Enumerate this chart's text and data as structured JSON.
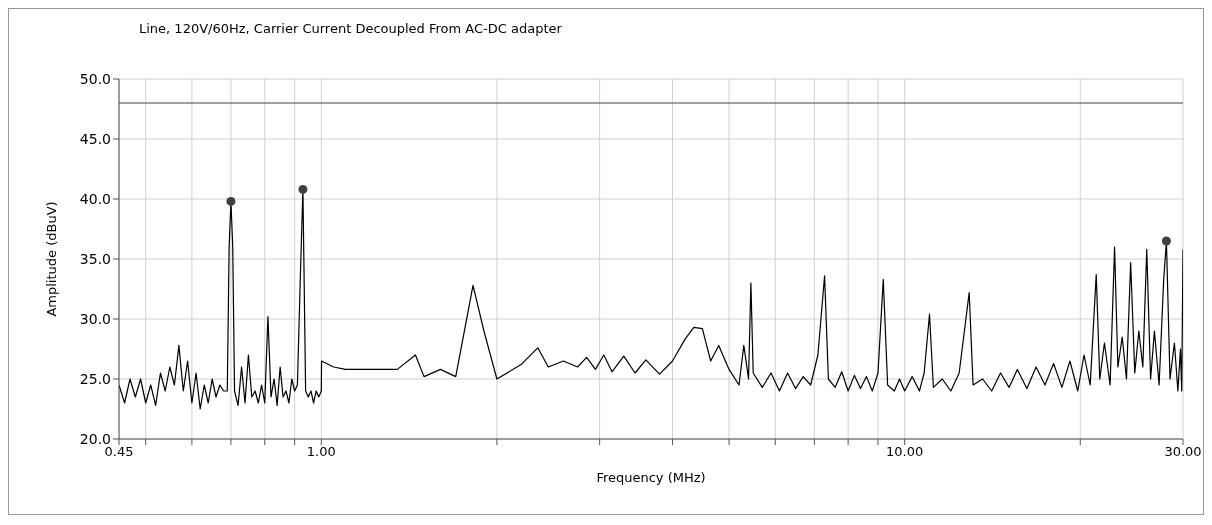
{
  "chart_data": {
    "type": "line",
    "title": "Line, 120V/60Hz, Carrier Current Decoupled From AC-DC adapter",
    "xlabel": "Frequency (MHz)",
    "ylabel": "Amplitude (dBuV)",
    "log": "x",
    "grid": true,
    "marker": "none",
    "line_style": "solid",
    "xlim": [
      0.45,
      30
    ],
    "ylim": [
      20,
      50
    ],
    "xticks": [
      {
        "value": 0.45,
        "label": "0.45"
      },
      {
        "value": 0.5,
        "label": null
      },
      {
        "value": 0.6,
        "label": null
      },
      {
        "value": 0.7,
        "label": null
      },
      {
        "value": 0.8,
        "label": null
      },
      {
        "value": 0.9,
        "label": null
      },
      {
        "value": 1,
        "label": "1.00"
      },
      {
        "value": 2,
        "label": null
      },
      {
        "value": 3,
        "label": null
      },
      {
        "value": 4,
        "label": null
      },
      {
        "value": 5,
        "label": null
      },
      {
        "value": 6,
        "label": null
      },
      {
        "value": 7,
        "label": null
      },
      {
        "value": 8,
        "label": null
      },
      {
        "value": 9,
        "label": null
      },
      {
        "value": 10,
        "label": "10.00"
      },
      {
        "value": 20,
        "label": null
      },
      {
        "value": 30,
        "label": "30.00"
      }
    ],
    "yticks": [
      {
        "value": 20,
        "label": "20.0"
      },
      {
        "value": 25,
        "label": "25.0"
      },
      {
        "value": 30,
        "label": "30.0"
      },
      {
        "value": 35,
        "label": "35.0"
      },
      {
        "value": 40,
        "label": "40.0"
      },
      {
        "value": 45,
        "label": "45.0"
      },
      {
        "value": 50,
        "label": "50.0"
      }
    ],
    "ref_lines": [
      {
        "axis": "y",
        "value": 48,
        "color": "#808080"
      }
    ],
    "series": [
      {
        "color": "#000000",
        "x": [
          0.45,
          0.46,
          0.47,
          0.48,
          0.49,
          0.5,
          0.51,
          0.52,
          0.53,
          0.54,
          0.55,
          0.56,
          0.57,
          0.58,
          0.59,
          0.6,
          0.61,
          0.62,
          0.63,
          0.64,
          0.65,
          0.66,
          0.67,
          0.68,
          0.69,
          0.695,
          0.7,
          0.705,
          0.71,
          0.72,
          0.73,
          0.74,
          0.75,
          0.76,
          0.77,
          0.78,
          0.79,
          0.8,
          0.81,
          0.82,
          0.83,
          0.84,
          0.85,
          0.86,
          0.87,
          0.88,
          0.89,
          0.9,
          0.91,
          0.92,
          0.93,
          0.94,
          0.95,
          0.96,
          0.97,
          0.98,
          0.99,
          1.0,
          1.001,
          1.05,
          1.1,
          1.2,
          1.3,
          1.35,
          1.45,
          1.5,
          1.6,
          1.7,
          1.82,
          1.9,
          2.0,
          2.2,
          2.35,
          2.45,
          2.6,
          2.75,
          2.85,
          2.95,
          3.05,
          3.15,
          3.3,
          3.45,
          3.6,
          3.8,
          4.0,
          4.2,
          4.35,
          4.5,
          4.65,
          4.8,
          5.0,
          5.2,
          5.3,
          5.4,
          5.45,
          5.5,
          5.7,
          5.9,
          6.1,
          6.3,
          6.5,
          6.7,
          6.9,
          7.1,
          7.29,
          7.4,
          7.6,
          7.8,
          8.0,
          8.2,
          8.4,
          8.6,
          8.8,
          9.0,
          9.19,
          9.35,
          9.6,
          9.8,
          10.0,
          10.3,
          10.6,
          10.8,
          11.03,
          11.2,
          11.6,
          12.0,
          12.4,
          12.9,
          13.1,
          13.6,
          14.1,
          14.6,
          15.1,
          15.6,
          16.2,
          16.8,
          17.4,
          18,
          18.6,
          19.2,
          19.8,
          20.3,
          20.8,
          21.3,
          21.6,
          22,
          22.5,
          22.9,
          23.2,
          23.6,
          24,
          24.4,
          24.8,
          25.2,
          25.6,
          26,
          26.4,
          26.8,
          27.3,
          27.8,
          28.1,
          28.5,
          29,
          29.4,
          29.7,
          29.85,
          30
        ],
        "values": [
          24.5,
          23,
          25,
          23.5,
          25,
          23,
          24.5,
          22.8,
          25.5,
          24,
          26,
          24.5,
          27.8,
          24,
          26.5,
          23,
          25.5,
          22.5,
          24.5,
          23,
          25,
          23.5,
          24.5,
          24,
          24,
          36,
          39.8,
          36,
          24,
          22.8,
          26,
          23,
          27,
          23.5,
          24,
          23,
          24.5,
          23,
          30.2,
          23.5,
          25,
          22.8,
          26,
          23.5,
          24,
          23,
          25,
          24,
          24.5,
          33,
          40.8,
          24,
          23.5,
          24,
          23,
          24,
          23.5,
          24,
          26.5,
          26,
          25.8,
          25.8,
          25.8,
          25.8,
          27,
          25.2,
          25.8,
          25.2,
          32.8,
          29,
          25,
          26.2,
          27.6,
          26,
          26.5,
          26,
          26.8,
          25.8,
          27,
          25.6,
          26.9,
          25.5,
          26.6,
          25.4,
          26.5,
          28.3,
          29.3,
          29.2,
          26.5,
          27.8,
          25.8,
          24.5,
          27.8,
          25,
          33,
          25.5,
          24.3,
          25.5,
          24,
          25.5,
          24.2,
          25.2,
          24.5,
          27,
          33.6,
          25,
          24.3,
          25.6,
          24,
          25.3,
          24.2,
          25.2,
          24,
          25.5,
          33.3,
          24.5,
          24,
          25,
          24,
          25.2,
          24,
          25.5,
          30.4,
          24.3,
          25,
          24,
          25.5,
          32.2,
          24.5,
          25,
          24,
          25.5,
          24.3,
          25.8,
          24.2,
          26,
          24.5,
          26.3,
          24.3,
          26.5,
          24,
          27,
          24.5,
          33.7,
          25,
          28,
          24.5,
          36,
          26,
          28.5,
          25,
          34.7,
          25.5,
          29,
          26,
          35.8,
          25,
          29,
          24.5,
          33.3,
          36.5,
          25,
          28,
          24,
          27.5,
          24,
          35.8
        ]
      },
      {
        "type": "scatter",
        "color": "#404040",
        "marker": "circle",
        "x": [
          0.7,
          0.93,
          28.1
        ],
        "values": [
          39.8,
          40.8,
          36.5
        ]
      }
    ]
  }
}
